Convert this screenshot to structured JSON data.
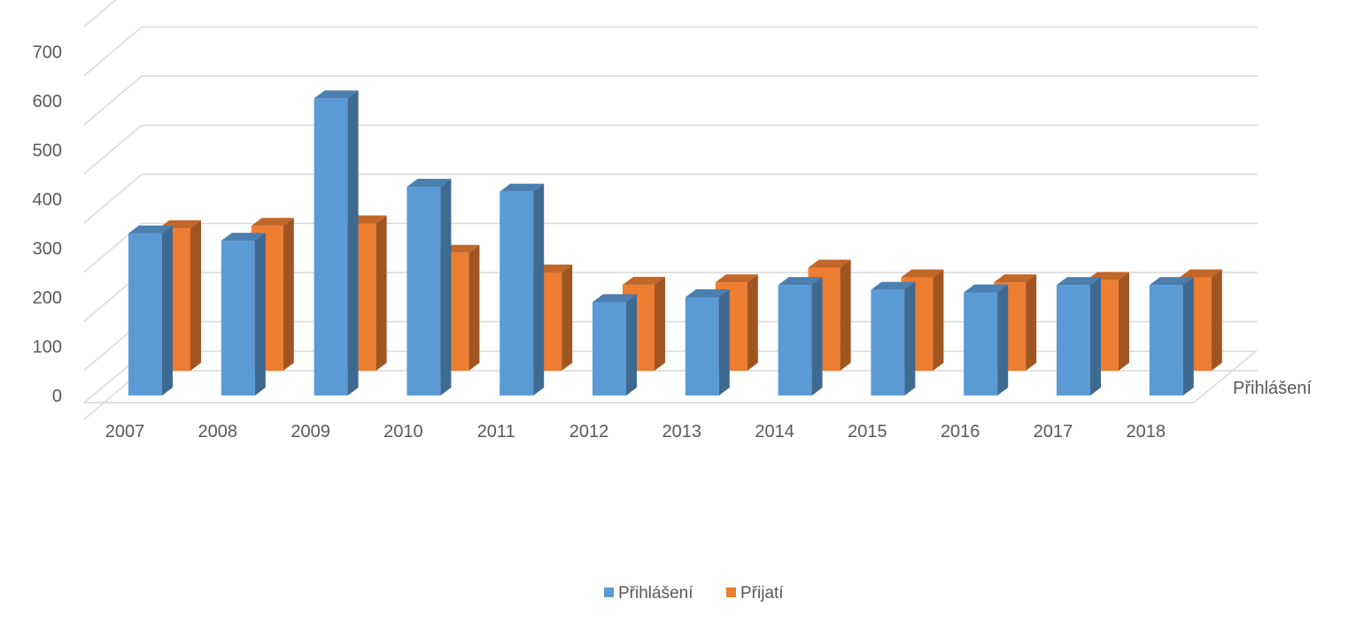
{
  "chart_data": {
    "type": "bar",
    "variant": "3d-column",
    "categories": [
      "2007",
      "2008",
      "2009",
      "2010",
      "2011",
      "2012",
      "2013",
      "2014",
      "2015",
      "2016",
      "2017",
      "2018"
    ],
    "series": [
      {
        "name": "Přihlášení",
        "values": [
          330,
          315,
          605,
          425,
          415,
          190,
          200,
          225,
          215,
          210,
          225,
          225
        ],
        "color": "#5B9BD5"
      },
      {
        "name": "Přijatí",
        "values": [
          290,
          295,
          300,
          240,
          200,
          175,
          180,
          210,
          190,
          180,
          185,
          190
        ],
        "color": "#ED7D31"
      }
    ],
    "depth_axis_label": "Přihlášení",
    "ylim": [
      0,
      700
    ],
    "y_ticks": [
      0,
      100,
      200,
      300,
      400,
      500,
      600,
      700
    ],
    "grid": true,
    "legend_position": "bottom"
  }
}
